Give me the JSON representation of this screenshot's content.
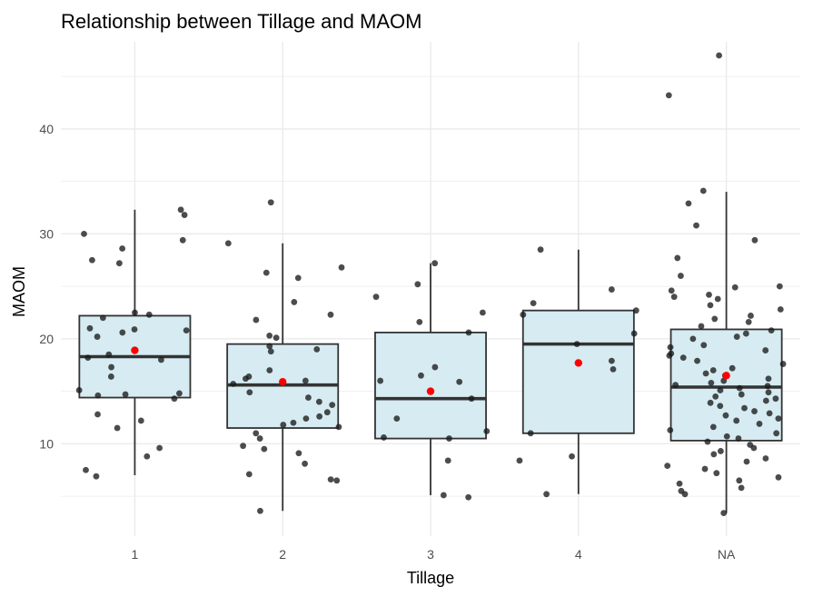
{
  "chart_data": {
    "type": "boxplot",
    "title": "Relationship between Tillage and MAOM",
    "xlabel": "Tillage",
    "ylabel": "MAOM",
    "categories": [
      "1",
      "2",
      "3",
      "4",
      "NA"
    ],
    "yticks": [
      10,
      20,
      30,
      40
    ],
    "ylim": [
      1.2,
      48.3
    ],
    "grid": true,
    "colors": {
      "box_fill": "#d6ebf2",
      "box_stroke": "#333333",
      "point": "#1a1a1a",
      "mean_point": "#ff0000",
      "grid": "#ebebeb"
    },
    "boxes": [
      {
        "category": "1",
        "whisker_low": 7.0,
        "q1": 14.4,
        "median": 18.3,
        "q3": 22.2,
        "whisker_high": 32.3,
        "mean": 18.9
      },
      {
        "category": "2",
        "whisker_low": 3.6,
        "q1": 11.5,
        "median": 15.6,
        "q3": 19.5,
        "whisker_high": 29.1,
        "mean": 15.9
      },
      {
        "category": "3",
        "whisker_low": 5.1,
        "q1": 10.5,
        "median": 14.3,
        "q3": 20.6,
        "whisker_high": 27.2,
        "mean": 15.0
      },
      {
        "category": "4",
        "whisker_low": 5.2,
        "q1": 11.0,
        "median": 19.5,
        "q3": 22.7,
        "whisker_high": 28.5,
        "mean": 17.7
      },
      {
        "category": "NA",
        "whisker_low": 3.4,
        "q1": 10.3,
        "median": 15.4,
        "q3": 20.9,
        "whisker_high": 34.0,
        "mean": 16.5
      }
    ],
    "points": [
      {
        "category": "1",
        "values": [
          32.3,
          31.8,
          30.0,
          28.6,
          29.4,
          27.5,
          27.2,
          22.5,
          22.3,
          22.0,
          21.0,
          20.8,
          20.6,
          20.2,
          20.9,
          18.5,
          18.2,
          18.0,
          17.3,
          16.4,
          15.1,
          14.8,
          14.6,
          14.3,
          14.7,
          12.8,
          12.2,
          11.5,
          9.6,
          8.8,
          7.5,
          6.9
        ]
      },
      {
        "category": "2",
        "values": [
          33.0,
          29.1,
          26.8,
          26.3,
          25.8,
          23.5,
          22.3,
          21.8,
          20.3,
          20.1,
          19.3,
          19.0,
          18.8,
          17.0,
          16.4,
          16.2,
          16.0,
          15.7,
          14.9,
          14.4,
          14.0,
          13.7,
          13.0,
          12.6,
          12.4,
          12.0,
          11.8,
          11.6,
          11.0,
          10.5,
          9.8,
          9.5,
          9.1,
          8.1,
          7.1,
          6.6,
          6.5,
          3.6
        ]
      },
      {
        "category": "3",
        "values": [
          27.2,
          25.2,
          24.0,
          22.5,
          21.6,
          20.6,
          17.3,
          16.5,
          16.0,
          15.9,
          14.3,
          12.4,
          11.2,
          10.6,
          10.5,
          8.4,
          5.1,
          4.9
        ]
      },
      {
        "category": "4",
        "values": [
          28.5,
          24.7,
          23.4,
          22.7,
          22.3,
          20.5,
          19.5,
          17.9,
          17.1,
          11.0,
          8.8,
          8.4,
          5.2
        ]
      },
      {
        "category": "NA",
        "values": [
          47.0,
          43.2,
          34.1,
          32.9,
          30.8,
          29.4,
          27.7,
          26.0,
          25.0,
          24.9,
          24.6,
          24.2,
          24.0,
          23.8,
          23.2,
          22.8,
          22.2,
          21.9,
          21.6,
          21.2,
          20.8,
          20.5,
          20.2,
          20.0,
          19.4,
          19.2,
          18.9,
          18.6,
          18.4,
          18.2,
          17.9,
          17.6,
          17.2,
          17.0,
          16.7,
          16.5,
          16.2,
          16.0,
          15.8,
          15.6,
          15.5,
          15.3,
          15.1,
          14.9,
          14.7,
          14.5,
          14.3,
          14.1,
          13.9,
          13.6,
          13.4,
          13.1,
          12.9,
          12.7,
          12.4,
          12.2,
          11.9,
          11.6,
          11.3,
          11.0,
          10.7,
          10.5,
          10.2,
          9.9,
          9.6,
          9.3,
          9.0,
          8.6,
          8.3,
          7.9,
          7.6,
          7.2,
          6.8,
          6.5,
          6.2,
          5.8,
          5.5,
          5.2,
          3.4
        ]
      }
    ]
  }
}
